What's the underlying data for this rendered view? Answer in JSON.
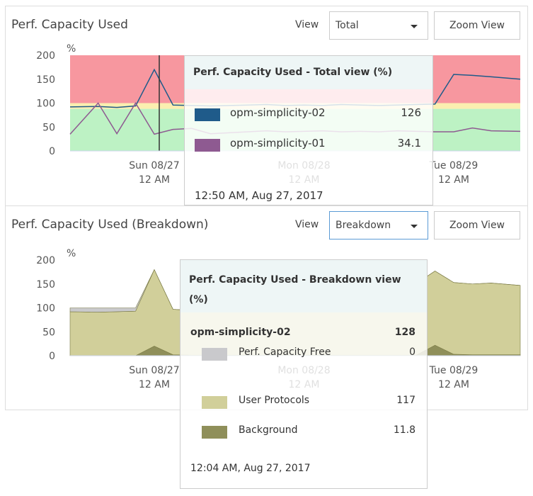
{
  "panel1": {
    "title": "Perf. Capacity Used",
    "view_label": "View",
    "view_value": "Total",
    "zoom_label": "Zoom View",
    "tooltip": {
      "title": "Perf. Capacity Used - Total view (%)",
      "rows": [
        {
          "name": "opm-simplicity-02",
          "value": "126",
          "color": "#1f5b8a"
        },
        {
          "name": "opm-simplicity-01",
          "value": "34.1",
          "color": "#8e5a91"
        }
      ],
      "time": "12:50 AM, Aug 27, 2017"
    }
  },
  "panel2": {
    "title": "Perf. Capacity Used (Breakdown)",
    "view_label": "View",
    "view_value": "Breakdown",
    "zoom_label": "Zoom View",
    "tooltip": {
      "title": "Perf. Capacity Used - Breakdown view (%)",
      "node": "opm-simplicity-02",
      "node_value": "128",
      "rows": [
        {
          "name": "Perf. Capacity Free",
          "value": "0",
          "color": "#c9c9cc"
        },
        {
          "name": "User Protocols",
          "value": "117",
          "color": "#d1cf9a"
        },
        {
          "name": "Background",
          "value": "11.8",
          "color": "#8f8f5a"
        }
      ],
      "time": "12:04 AM, Aug 27, 2017"
    }
  },
  "chart_data": [
    {
      "type": "line",
      "ylabel": "%",
      "ylim": [
        0,
        200
      ],
      "yticks": [
        "0",
        "50",
        "100",
        "150",
        "200"
      ],
      "xticks": [
        {
          "label": "Sun 08/27",
          "sub": "12 AM",
          "t": "2017-08-27T00:00"
        },
        {
          "label": "Mon 08/28",
          "sub": "12 AM",
          "t": "2017-08-28T00:00"
        },
        {
          "label": "Tue 08/29",
          "sub": "12 AM",
          "t": "2017-08-29T00:00"
        }
      ],
      "bands": [
        {
          "from": 0,
          "to": 88,
          "color": "#bdf2c4"
        },
        {
          "from": 88,
          "to": 100,
          "color": "#fbefb0"
        },
        {
          "from": 100,
          "to": 200,
          "color": "#f7979f"
        }
      ],
      "x": [
        "2017-08-26T12:00",
        "2017-08-26T15:00",
        "2017-08-26T18:00",
        "2017-08-26T21:00",
        "2017-08-27T00:00",
        "2017-08-27T03:00",
        "2017-08-27T06:00",
        "2017-08-27T09:00",
        "2017-08-27T12:00",
        "2017-08-27T15:00",
        "2017-08-27T18:00",
        "2017-08-27T21:00",
        "2017-08-28T00:00",
        "2017-08-28T03:00",
        "2017-08-28T06:00",
        "2017-08-28T09:00",
        "2017-08-28T12:00",
        "2017-08-28T15:00",
        "2017-08-28T18:00",
        "2017-08-28T21:00",
        "2017-08-29T00:00",
        "2017-08-29T03:00",
        "2017-08-29T06:00",
        "2017-08-29T09:00"
      ],
      "series": [
        {
          "name": "opm-simplicity-02",
          "color": "#1f5b8a",
          "values": [
            92,
            93,
            91,
            94,
            170,
            96,
            95,
            94,
            95,
            96,
            97,
            95,
            96,
            95,
            97,
            96,
            95,
            96,
            97,
            98,
            160,
            158,
            155,
            150
          ]
        },
        {
          "name": "opm-simplicity-01",
          "color": "#8e5a91",
          "values": [
            35,
            100,
            36,
            100,
            35,
            45,
            47,
            36,
            38,
            40,
            42,
            40,
            41,
            42,
            40,
            41,
            40,
            42,
            41,
            40,
            40,
            48,
            42,
            41
          ]
        }
      ]
    },
    {
      "type": "area",
      "stacked": true,
      "ylabel": "%",
      "ylim": [
        0,
        200
      ],
      "yticks": [
        "0",
        "50",
        "100",
        "150",
        "200"
      ],
      "xticks": [
        {
          "label": "Sun 08/27",
          "sub": "12 AM",
          "t": "2017-08-27T00:00"
        },
        {
          "label": "Mon 08/28",
          "sub": "12 AM",
          "t": "2017-08-28T00:00"
        },
        {
          "label": "Tue 08/29",
          "sub": "12 AM",
          "t": "2017-08-29T00:00"
        }
      ],
      "x": [
        "2017-08-26T12:00",
        "2017-08-26T15:00",
        "2017-08-26T18:00",
        "2017-08-26T21:00",
        "2017-08-27T00:00",
        "2017-08-27T03:00",
        "2017-08-27T06:00",
        "2017-08-27T09:00",
        "2017-08-27T12:00",
        "2017-08-27T15:00",
        "2017-08-27T18:00",
        "2017-08-27T21:00",
        "2017-08-28T00:00",
        "2017-08-28T03:00",
        "2017-08-28T06:00",
        "2017-08-28T09:00",
        "2017-08-28T12:00",
        "2017-08-28T15:00",
        "2017-08-28T18:00",
        "2017-08-28T21:00",
        "2017-08-29T00:00",
        "2017-08-29T03:00",
        "2017-08-29T06:00",
        "2017-08-29T09:00"
      ],
      "series": [
        {
          "name": "Background",
          "color": "#8f8f5a",
          "values": [
            0,
            0,
            0,
            0,
            20,
            2,
            1,
            1,
            1,
            1,
            1,
            1,
            1,
            1,
            1,
            1,
            1,
            1,
            1,
            22,
            3,
            2,
            2,
            2
          ]
        },
        {
          "name": "User Protocols",
          "color": "#d1cf9a",
          "values": [
            92,
            91,
            92,
            93,
            160,
            95,
            94,
            93,
            93,
            94,
            95,
            94,
            95,
            94,
            95,
            94,
            95,
            96,
            150,
            155,
            150,
            148,
            150,
            145
          ]
        },
        {
          "name": "Perf. Capacity Free",
          "color": "#c9c9cc",
          "values": [
            8,
            9,
            8,
            7,
            0,
            0,
            0,
            0,
            0,
            0,
            0,
            0,
            0,
            0,
            0,
            0,
            0,
            0,
            0,
            0,
            0,
            0,
            0,
            0
          ]
        }
      ]
    }
  ]
}
